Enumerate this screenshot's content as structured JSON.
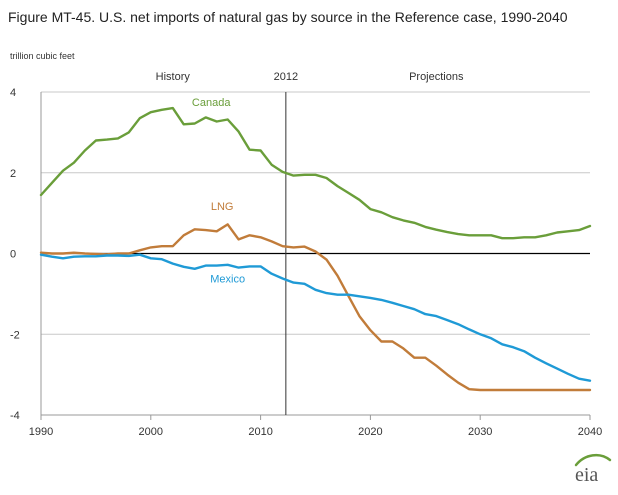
{
  "figure_title": "Figure MT-45. U.S. net imports of natural gas by source in the Reference case, 1990-2040",
  "unit_label": "trillion cubic feet",
  "logo_text": "eia",
  "chart_data": {
    "type": "line",
    "title": "Figure MT-45. U.S. net imports of natural gas by source in the Reference case, 1990-2040",
    "ylabel": "trillion cubic feet",
    "xlabel": "",
    "xlim": [
      1990,
      2040
    ],
    "ylim": [
      -4,
      4
    ],
    "x_ticks": [
      1990,
      2000,
      2010,
      2020,
      2030,
      2040
    ],
    "x_tick_labels": [
      "1990",
      "2000",
      "2010",
      "2020",
      "2030",
      "2040"
    ],
    "y_ticks": [
      4,
      2,
      0,
      -2,
      -4
    ],
    "y_tick_labels": [
      "4",
      "2",
      "0",
      "-2",
      "-4"
    ],
    "gridlines": "horizontal",
    "divider_year": 2012.3,
    "divider_label": "2012",
    "region_labels": [
      {
        "text": "History",
        "x": 2002
      },
      {
        "text": "Projections",
        "x": 2026
      }
    ],
    "x": [
      1990,
      1991,
      1992,
      1993,
      1994,
      1995,
      1996,
      1997,
      1998,
      1999,
      2000,
      2001,
      2002,
      2003,
      2004,
      2005,
      2006,
      2007,
      2008,
      2009,
      2010,
      2011,
      2012,
      2013,
      2014,
      2015,
      2016,
      2017,
      2018,
      2019,
      2020,
      2021,
      2022,
      2023,
      2024,
      2025,
      2026,
      2027,
      2028,
      2029,
      2030,
      2031,
      2032,
      2033,
      2034,
      2035,
      2036,
      2037,
      2038,
      2039,
      2040
    ],
    "series": [
      {
        "name": "Canada",
        "color": "#6a9e3a",
        "label_x": 2005.5,
        "label_y": 3.65,
        "values": [
          1.45,
          1.75,
          2.05,
          2.25,
          2.55,
          2.8,
          2.82,
          2.85,
          3.0,
          3.35,
          3.5,
          3.56,
          3.6,
          3.2,
          3.22,
          3.37,
          3.27,
          3.32,
          3.02,
          2.57,
          2.55,
          2.2,
          2.02,
          1.93,
          1.95,
          1.95,
          1.87,
          1.67,
          1.5,
          1.33,
          1.1,
          1.02,
          0.9,
          0.82,
          0.76,
          0.66,
          0.59,
          0.53,
          0.48,
          0.45,
          0.45,
          0.45,
          0.38,
          0.38,
          0.4,
          0.4,
          0.45,
          0.52,
          0.55,
          0.58,
          0.68
        ]
      },
      {
        "name": "LNG",
        "color": "#c17c3a",
        "label_x": 2006.5,
        "label_y": 1.08,
        "values": [
          0.02,
          0.0,
          0.0,
          0.02,
          0.0,
          -0.01,
          -0.02,
          0.0,
          0.0,
          0.08,
          0.15,
          0.18,
          0.18,
          0.45,
          0.6,
          0.58,
          0.55,
          0.72,
          0.35,
          0.45,
          0.4,
          0.3,
          0.18,
          0.15,
          0.17,
          0.05,
          -0.15,
          -0.55,
          -1.05,
          -1.55,
          -1.9,
          -2.18,
          -2.18,
          -2.35,
          -2.58,
          -2.58,
          -2.78,
          -3.0,
          -3.2,
          -3.36,
          -3.38,
          -3.38,
          -3.38,
          -3.38,
          -3.38,
          -3.38,
          -3.38,
          -3.38,
          -3.38,
          -3.38,
          -3.38
        ]
      },
      {
        "name": "Mexico",
        "color": "#1f9ad6",
        "label_x": 2007,
        "label_y": -0.72,
        "values": [
          -0.03,
          -0.08,
          -0.12,
          -0.08,
          -0.07,
          -0.07,
          -0.05,
          -0.05,
          -0.06,
          -0.03,
          -0.12,
          -0.14,
          -0.25,
          -0.33,
          -0.38,
          -0.3,
          -0.3,
          -0.28,
          -0.35,
          -0.32,
          -0.32,
          -0.5,
          -0.62,
          -0.72,
          -0.75,
          -0.9,
          -0.98,
          -1.02,
          -1.02,
          -1.06,
          -1.1,
          -1.15,
          -1.22,
          -1.3,
          -1.38,
          -1.5,
          -1.55,
          -1.65,
          -1.75,
          -1.88,
          -2.0,
          -2.1,
          -2.25,
          -2.32,
          -2.42,
          -2.58,
          -2.72,
          -2.85,
          -2.98,
          -3.1,
          -3.15
        ]
      }
    ]
  }
}
